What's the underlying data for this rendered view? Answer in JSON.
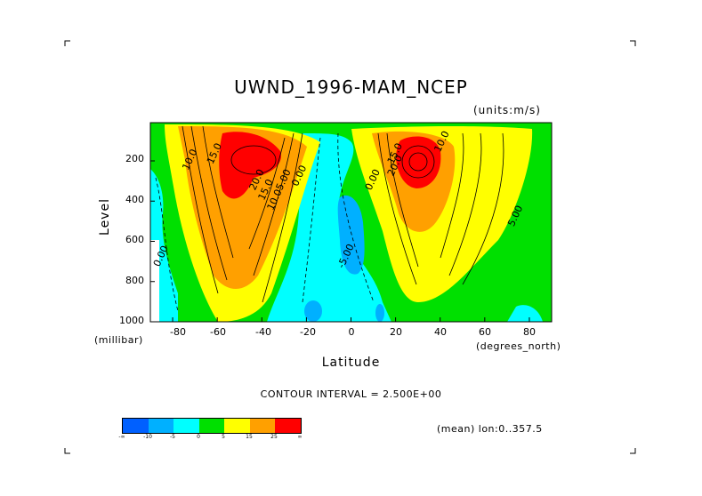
{
  "chart_data": {
    "type": "contour",
    "title": "UWND_1996-MAM_NCEP",
    "units": "(units:m/s)",
    "xlabel": "Latitude",
    "ylabel": "Level",
    "x_unit": "(degrees_north)",
    "y_unit": "(millibar)",
    "xlim": [
      -90,
      90
    ],
    "ylim": [
      1000,
      10
    ],
    "x_ticks": [
      "-80",
      "-60",
      "-40",
      "-20",
      "0",
      "20",
      "40",
      "60",
      "80"
    ],
    "x_tick_values": [
      -80,
      -60,
      -40,
      -20,
      0,
      20,
      40,
      60,
      80
    ],
    "y_ticks": [
      "200",
      "400",
      "600",
      "800",
      "1000"
    ],
    "y_tick_values": [
      200,
      400,
      600,
      800,
      1000
    ],
    "contour_interval_text": "CONTOUR INTERVAL = 2.500E+00",
    "subtitle": "(mean) lon:0..357.5",
    "contour_labels": [
      {
        "text": "10.0",
        "lat": -71,
        "lev": 200
      },
      {
        "text": "15.0",
        "lat": -60,
        "lev": 170
      },
      {
        "text": "20.0",
        "lat": -41,
        "lev": 300
      },
      {
        "text": "15.0",
        "lat": -37,
        "lev": 350
      },
      {
        "text": "10.0",
        "lat": -33,
        "lev": 400
      },
      {
        "text": "5.00",
        "lat": -29,
        "lev": 300
      },
      {
        "text": "0.00",
        "lat": -22,
        "lev": 280
      },
      {
        "text": "0.00",
        "lat": -84,
        "lev": 680
      },
      {
        "text": "-5.00",
        "lat": -1,
        "lev": 680
      },
      {
        "text": "0.00",
        "lat": 11,
        "lev": 300
      },
      {
        "text": "15.0",
        "lat": 21,
        "lev": 170
      },
      {
        "text": "20.0",
        "lat": 21,
        "lev": 230
      },
      {
        "text": "10.0",
        "lat": 42,
        "lev": 110
      },
      {
        "text": "5.00",
        "lat": 75,
        "lev": 480
      }
    ],
    "colorbar": {
      "labels": [
        "-∞",
        "-10",
        "-5",
        "0",
        "5",
        "15",
        "25",
        "∞"
      ],
      "colors": [
        "#0060ff",
        "#00b0ff",
        "#00ffff",
        "#00e000",
        "#ffff00",
        "#ffa000",
        "#ff0000"
      ]
    }
  }
}
